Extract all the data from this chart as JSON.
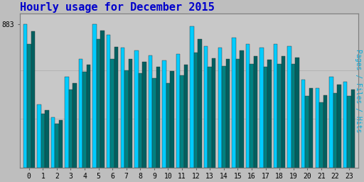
{
  "title": "Hourly usage for December 2015",
  "ylabel_right": "Pages / Files / Hits",
  "hours": [
    0,
    1,
    2,
    3,
    4,
    5,
    6,
    7,
    8,
    9,
    10,
    11,
    12,
    13,
    14,
    15,
    16,
    17,
    18,
    19,
    20,
    21,
    22,
    23
  ],
  "hits": [
    883,
    390,
    310,
    560,
    670,
    883,
    820,
    740,
    720,
    690,
    660,
    700,
    870,
    750,
    740,
    800,
    760,
    740,
    760,
    750,
    540,
    490,
    560,
    530
  ],
  "files": [
    760,
    330,
    270,
    480,
    590,
    790,
    670,
    600,
    580,
    550,
    520,
    570,
    710,
    620,
    625,
    670,
    640,
    620,
    640,
    640,
    440,
    400,
    460,
    440
  ],
  "pages": [
    840,
    355,
    290,
    520,
    635,
    845,
    745,
    670,
    650,
    620,
    595,
    635,
    790,
    675,
    670,
    720,
    685,
    665,
    685,
    680,
    490,
    445,
    510,
    480
  ],
  "ylim": [
    0,
    950
  ],
  "color_hits": "#00CCFF",
  "color_files": "#008080",
  "color_pages": "#006060",
  "bg_color": "#BEBEBE",
  "plot_bg": "#C8C8C8",
  "bar_edge": "#303030",
  "title_color": "#0000CC",
  "ylabel_color": "#00AADD",
  "title_fontsize": 11,
  "bar_width": 0.28,
  "ymax_label": "883"
}
